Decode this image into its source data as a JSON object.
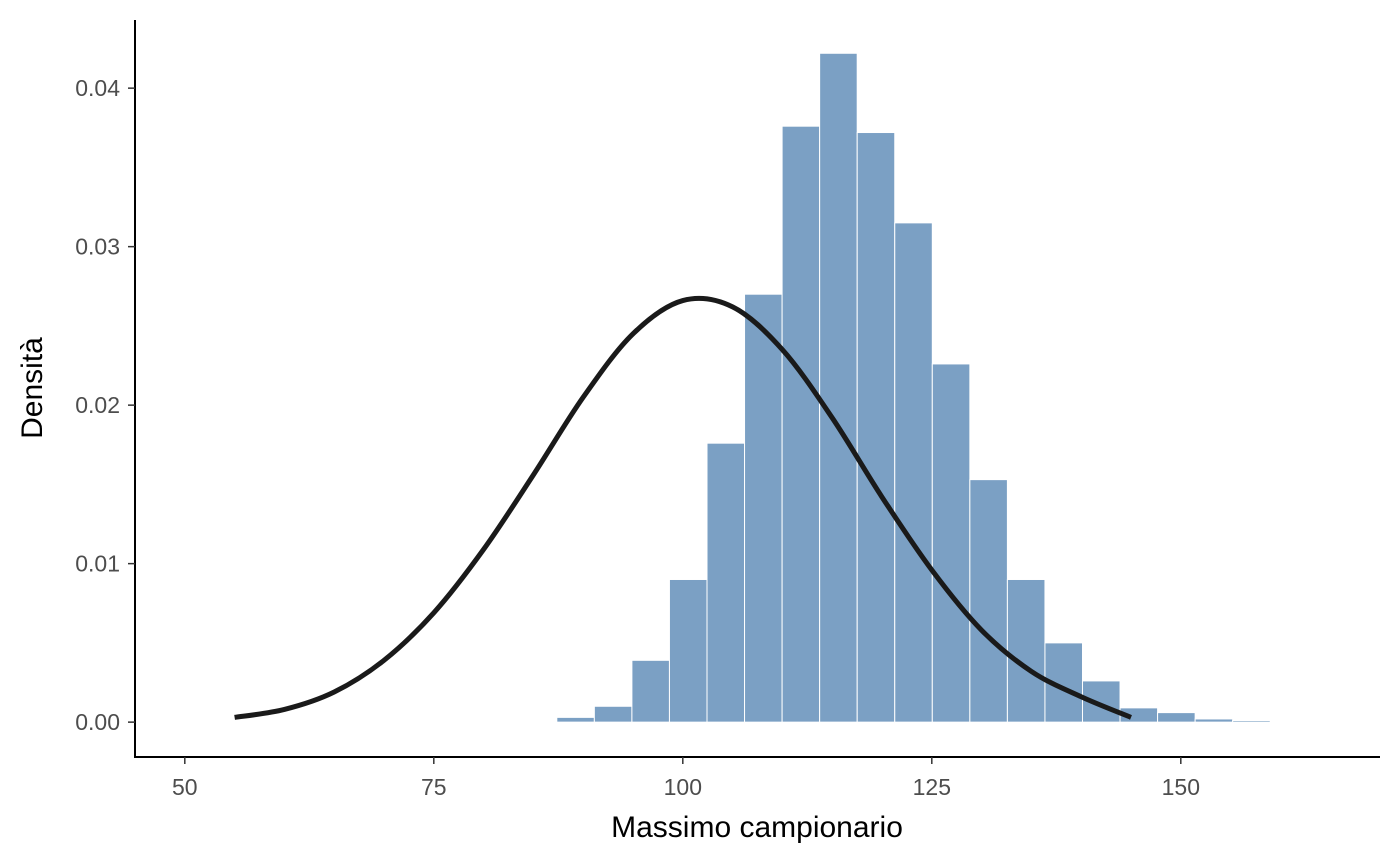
{
  "chart_data": {
    "type": "bar",
    "title": "",
    "xlabel": "Massimo campionario",
    "ylabel": "Densità",
    "xlim": [
      45,
      170
    ],
    "ylim": [
      -0.0022,
      0.0443
    ],
    "x_ticks": [
      50,
      75,
      100,
      125,
      150
    ],
    "x_tick_labels": [
      "50",
      "75",
      "100",
      "125",
      "150"
    ],
    "y_ticks": [
      0,
      0.01,
      0.02,
      0.03,
      0.04
    ],
    "y_tick_labels": [
      "0.00",
      "0.01",
      "0.02",
      "0.03",
      "0.04"
    ],
    "grid": false,
    "legend": "none",
    "histogram": {
      "bin_width": 3.77,
      "bin_starts": [
        87.35,
        91.12,
        94.89,
        98.66,
        102.43,
        106.2,
        109.97,
        113.74,
        117.51,
        121.28,
        125.05,
        128.82,
        132.59,
        136.36,
        140.13,
        143.9,
        147.67,
        151.44,
        155.21
      ],
      "density": [
        0.0003,
        0.001,
        0.0039,
        0.009,
        0.0176,
        0.027,
        0.0376,
        0.0422,
        0.0372,
        0.0315,
        0.0226,
        0.0153,
        0.009,
        0.005,
        0.0026,
        0.0009,
        0.0006,
        0.0002,
        0.0001
      ],
      "color": "#7ba0c4",
      "edge_color": "#ffffff"
    },
    "curve": {
      "type": "line",
      "description_of_shape": "normal density",
      "x": [
        55,
        60,
        65,
        70,
        75,
        80,
        85,
        90,
        95,
        100,
        105,
        110,
        115,
        120,
        125,
        130,
        135,
        140,
        145
      ],
      "y": [
        0.0003,
        0.0008,
        0.0019,
        0.0039,
        0.0069,
        0.0109,
        0.0156,
        0.0205,
        0.0245,
        0.0266,
        0.0262,
        0.0235,
        0.0192,
        0.0142,
        0.0096,
        0.0058,
        0.0032,
        0.0016,
        0.0003
      ],
      "color": "#1a1a1a"
    }
  }
}
